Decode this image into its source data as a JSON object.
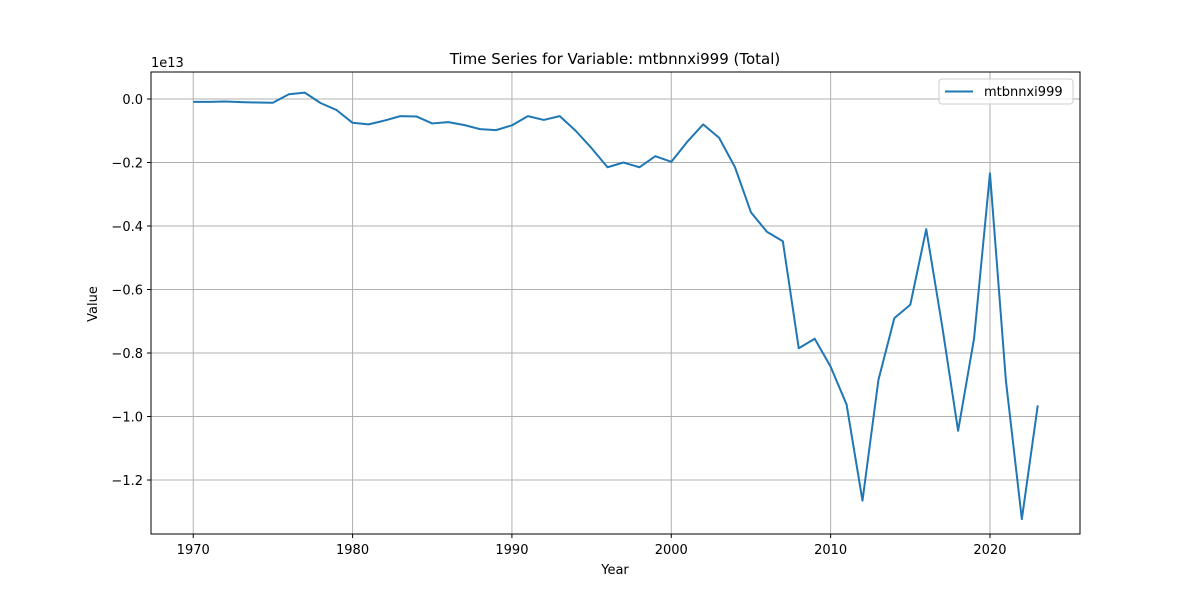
{
  "chart_data": {
    "type": "line",
    "title": "Time Series for Variable: mtbnnxi999 (Total)",
    "xlabel": "Year",
    "ylabel": "Value",
    "y_scale_label": "1e13",
    "xlim": [
      1967.35,
      2055.65
    ],
    "ylim": [
      -1.37,
      0.085
    ],
    "x_ticks": [
      1970,
      1980,
      1990,
      2000,
      2010,
      2020
    ],
    "y_ticks": [
      0.0,
      -0.2,
      -0.4,
      -0.6,
      -0.8,
      -1.0,
      -1.2
    ],
    "y_tick_labels": [
      "0.0",
      "−0.2",
      "−0.4",
      "−0.6",
      "−0.8",
      "−1.0",
      "−1.2"
    ],
    "grid": true,
    "legend_position": "top-right",
    "series": [
      {
        "name": "mtbnnxi999",
        "color": "#1f77b4",
        "x": [
          1970,
          1971,
          1972,
          1973,
          1974,
          1975,
          1976,
          1977,
          1978,
          1979,
          1980,
          1981,
          1982,
          1983,
          1984,
          1985,
          1986,
          1987,
          1988,
          1989,
          1990,
          1991,
          1992,
          1993,
          1994,
          1995,
          1996,
          1997,
          1998,
          1999,
          2000,
          2001,
          2002,
          2003,
          2004,
          2005,
          2006,
          2007,
          2008,
          2009,
          2010,
          2011,
          2012,
          2013,
          2014,
          2015,
          2016,
          2017,
          2018,
          2019,
          2020,
          2021,
          2022,
          2023
        ],
        "y": [
          -0.009,
          -0.009,
          -0.008,
          -0.01,
          -0.011,
          -0.012,
          0.015,
          0.02,
          -0.013,
          -0.035,
          -0.075,
          -0.08,
          -0.068,
          -0.054,
          -0.055,
          -0.077,
          -0.073,
          -0.082,
          -0.095,
          -0.098,
          -0.083,
          -0.054,
          -0.066,
          -0.054,
          -0.1,
          -0.155,
          -0.215,
          -0.2,
          -0.215,
          -0.18,
          -0.198,
          -0.135,
          -0.08,
          -0.122,
          -0.215,
          -0.357,
          -0.418,
          -0.448,
          -0.785,
          -0.755,
          -0.843,
          -0.962,
          -1.265,
          -0.885,
          -0.69,
          -0.648,
          -0.41,
          -0.715,
          -1.045,
          -0.755,
          -0.234,
          -0.887,
          -1.323,
          -0.965
        ]
      }
    ]
  }
}
